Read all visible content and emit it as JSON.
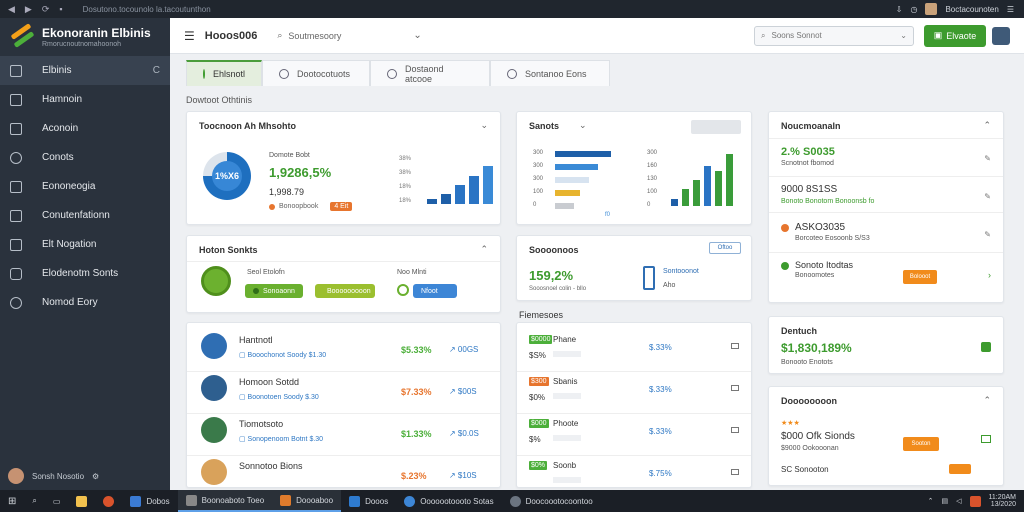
{
  "browser": {
    "url": "Dosutono.tocounolo la.tacoutunthon",
    "account": "Boctacounoten"
  },
  "brand": {
    "name": "Ekonoranin Elbinis",
    "tagline": "Rmorucnoutnomahoonoh",
    "colors": {
      "orange": "#f4a019",
      "green": "#4caf3a"
    }
  },
  "sidebar": {
    "items": [
      {
        "label": "Elbinis",
        "icon": "dashboard-icon"
      },
      {
        "label": "Hamnoin",
        "icon": "card-icon"
      },
      {
        "label": "Aconoin",
        "icon": "chart-icon"
      },
      {
        "label": "Conots",
        "icon": "circle-icon"
      },
      {
        "label": "Eononeogia",
        "icon": "document-icon"
      },
      {
        "label": "Conutenfationn",
        "icon": "square-icon"
      },
      {
        "label": "Elt Nogation",
        "icon": "group-icon"
      },
      {
        "label": "Elodenotm Sonts",
        "icon": "tablet-icon"
      },
      {
        "label": "Nomod Eory",
        "icon": "settings-icon"
      }
    ],
    "collapse_glyph": "C",
    "user": "Sonsh Nosotio"
  },
  "header": {
    "title": "Hooos006",
    "scope": "Soutmesoory",
    "search_placeholder": "Soons Sonnot",
    "action_label": "Elvaote"
  },
  "tabs": [
    {
      "label": "Ehlsnotl"
    },
    {
      "label": "Dootocotuots"
    },
    {
      "label": "Dostaond atcooe"
    },
    {
      "label": "Sontanoo Eons"
    }
  ],
  "section_label": "Dowtoot Othtinis",
  "card_performance": {
    "title": "Toocnoon Ah Mhsohto",
    "donut_label": "1%X6",
    "donut_fraction": 0.75,
    "mini_title": "Domote Bobt",
    "big_value": "1,9286,5%",
    "sub_value": "1,998.79",
    "badge": "Bonoopbook",
    "badge_tag": "4 Eit",
    "bar_axis": [
      "38%",
      "38%",
      "18%",
      "18%"
    ],
    "bars": [
      4,
      8,
      15,
      22,
      30
    ]
  },
  "card_sales": {
    "title": "Sanots",
    "axis": [
      "300",
      "300",
      "300",
      "100",
      "0"
    ],
    "hbars": [
      0.9,
      0.7,
      0.55,
      0.4,
      0.3
    ],
    "axis_x": "f0",
    "vaxis": [
      "300",
      "160",
      "130",
      "100",
      "0"
    ],
    "vbars": [
      5,
      12,
      18,
      28,
      24,
      36
    ]
  },
  "card_notifications": {
    "title": "Noucmoanaln",
    "items": [
      {
        "value": "2.% S0035",
        "sub": "Scnotnot fbomod",
        "color": "#4caf3a"
      },
      {
        "value": "9000 8S1SS",
        "sub": "Bonoto Bonotom Bonoonsb fo",
        "color": "#4caf3a"
      },
      {
        "value": "ASKO3035",
        "sub": "Borcoteo Eosoonb S/S3",
        "color": "#e7752e"
      },
      {
        "value": "Sonoto Itodtas",
        "sub": "Bonoomotes",
        "color": "#3d9b2e",
        "tag": "Bolooot"
      }
    ]
  },
  "card_notes": {
    "title": "Hoton Sonkts",
    "left_label": "Seol Etolofn",
    "left_pill": "Sonoaonn",
    "mid_pill": "Booooooooon",
    "right_label": "Noo Mlnti",
    "right_pill": "Nfoot"
  },
  "card_summary": {
    "title": "Soooonoos",
    "value": "159,2%",
    "sub": "Sooosnoel colin - bllo",
    "btn": "Oftoo",
    "side_title": "Sontooonot",
    "side_sub": "Aho"
  },
  "card_revenue": {
    "title": "Dentuch",
    "value": "$1,830,189%",
    "sub": "Bonooto Enotots"
  },
  "list_left": [
    {
      "name": "Hantnotl",
      "sub": "Booochonot Soody  $1.30",
      "value": "$5.33%",
      "delta": "00GS",
      "value_color": "#4caf3a",
      "avatar": "#2f6eb3"
    },
    {
      "name": "Homoon Sotdd",
      "sub": "Boonotoen Soody  $.30",
      "value": "$7.33%",
      "delta": "$00S",
      "value_color": "#e7752e",
      "avatar": "#2e5f8f"
    },
    {
      "name": "Tiomotsoto",
      "sub": "Sonopenoom Botnt  $.30",
      "value": "$1.33%",
      "delta": "$0.0S",
      "value_color": "#4caf3a",
      "avatar": "#3a7a4a"
    },
    {
      "name": "Sonnotoo Bions",
      "sub": "",
      "value": "$.23%",
      "delta": "$10S",
      "value_color": "#e7752e",
      "avatar": "#d9a25b"
    }
  ],
  "list_mid_title": "Fiemesoes",
  "list_mid": [
    {
      "badge": "$0000",
      "title": "Phane",
      "sub": "$S%",
      "value": "$.33%",
      "color": "#4caf3a"
    },
    {
      "badge": "$300",
      "title": "Sbanis",
      "sub": "$0%",
      "value": "$.33%",
      "color": "#e7752e"
    },
    {
      "badge": "$000",
      "title": "Phoote",
      "sub": "$%",
      "value": "$.33%",
      "color": "#4caf3a"
    },
    {
      "badge": "$0%",
      "title": "Soonb",
      "sub": "",
      "value": "$.75%",
      "color": "#4caf3a"
    }
  ],
  "card_recent": {
    "title": "Doooooooon",
    "value": "$000 Ofk Sionds",
    "sub": "$9000 Ookooonan",
    "pill": "Sooton",
    "c_line": "SC Sonooton"
  },
  "taskbar": {
    "apps": [
      "Dobos",
      "Boonoaboto Toeo",
      "Doooaboo",
      "Dooos",
      "Ooooootoooto Sotas",
      "Doocoootocoontoo"
    ],
    "time": "11:20AM",
    "date": "13/2020"
  }
}
